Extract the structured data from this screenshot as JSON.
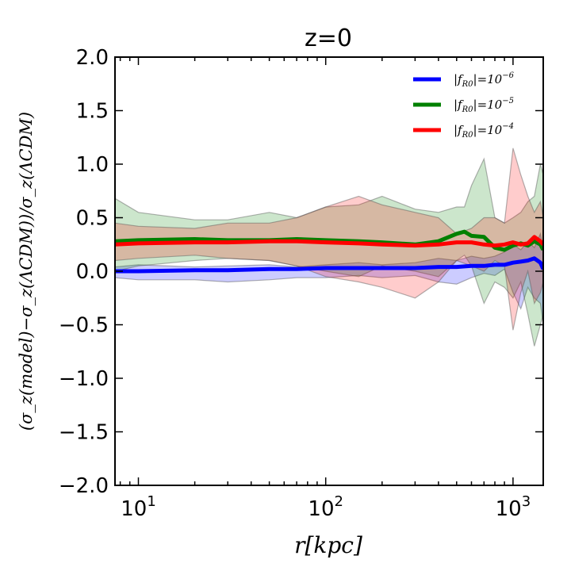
{
  "chart_data": {
    "type": "line",
    "title": "z=0",
    "xlabel": "r[kpc]",
    "ylabel": "(σ_z(model)−σ_z(ΛCDM))/σ_z(ΛCDM)",
    "xscale": "log",
    "xlim": [
      7.5,
      1450
    ],
    "ylim": [
      -2.0,
      2.0
    ],
    "yticks": [
      "2.0",
      "1.5",
      "1.0",
      "0.5",
      "0.0",
      "−0.5",
      "−1.0",
      "−1.5",
      "−2.0"
    ],
    "ytick_values": [
      2.0,
      1.5,
      1.0,
      0.5,
      0.0,
      -0.5,
      -1.0,
      -1.5,
      -2.0
    ],
    "xticks": [
      {
        "value": 10,
        "base": "10",
        "exp": "1"
      },
      {
        "value": 100,
        "base": "10",
        "exp": "2"
      },
      {
        "value": 1000,
        "base": "10",
        "exp": "3"
      }
    ],
    "legend_position": "top-right",
    "series": [
      {
        "name": "|f_R0|=10^-6",
        "legend_main": "|f",
        "legend_sub": "R0",
        "legend_rest": "|=10",
        "legend_exp": "−6",
        "color": "#0000ff",
        "x": [
          7.5,
          10,
          20,
          30,
          50,
          70,
          100,
          150,
          200,
          300,
          400,
          500,
          600,
          700,
          800,
          900,
          1000,
          1100,
          1200,
          1300,
          1400,
          1450
        ],
        "y": [
          0.0,
          0.0,
          0.01,
          0.01,
          0.02,
          0.02,
          0.03,
          0.03,
          0.03,
          0.03,
          0.04,
          0.04,
          0.05,
          0.05,
          0.06,
          0.06,
          0.08,
          0.09,
          0.1,
          0.12,
          0.08,
          0.02
        ],
        "lower": [
          -0.06,
          -0.08,
          -0.08,
          -0.1,
          -0.08,
          -0.06,
          -0.06,
          -0.04,
          -0.06,
          -0.04,
          -0.1,
          -0.12,
          -0.06,
          -0.02,
          -0.04,
          0.02,
          -0.2,
          -0.35,
          -0.15,
          -0.25,
          -0.3,
          -0.5
        ],
        "upper": [
          0.04,
          0.06,
          0.04,
          0.05,
          0.06,
          0.04,
          0.06,
          0.08,
          0.06,
          0.08,
          0.12,
          0.1,
          0.14,
          0.12,
          0.14,
          0.18,
          0.25,
          0.2,
          0.28,
          0.22,
          0.35,
          0.2
        ]
      },
      {
        "name": "|f_R0|=10^-5",
        "legend_main": "|f",
        "legend_sub": "R0",
        "legend_rest": "|=10",
        "legend_exp": "−5",
        "color": "#008000",
        "x": [
          7.5,
          10,
          20,
          30,
          50,
          70,
          100,
          150,
          200,
          300,
          400,
          500,
          550,
          600,
          700,
          800,
          900,
          1000,
          1100,
          1200,
          1300,
          1400,
          1450
        ],
        "y": [
          0.28,
          0.29,
          0.3,
          0.29,
          0.29,
          0.3,
          0.29,
          0.28,
          0.27,
          0.25,
          0.28,
          0.35,
          0.37,
          0.33,
          0.32,
          0.22,
          0.2,
          0.24,
          0.26,
          0.24,
          0.28,
          0.25,
          0.2
        ],
        "lower": [
          0.0,
          0.05,
          0.1,
          0.12,
          0.1,
          0.05,
          0.0,
          -0.05,
          0.05,
          0.0,
          -0.05,
          0.1,
          0.15,
          0.05,
          -0.3,
          -0.1,
          -0.15,
          -0.25,
          -0.1,
          -0.4,
          -0.7,
          -0.5,
          -0.4
        ],
        "upper": [
          0.68,
          0.55,
          0.48,
          0.48,
          0.55,
          0.5,
          0.6,
          0.62,
          0.7,
          0.58,
          0.55,
          0.6,
          0.6,
          0.8,
          1.05,
          0.5,
          0.45,
          0.5,
          0.55,
          0.65,
          0.7,
          1.0,
          0.9
        ]
      },
      {
        "name": "|f_R0|=10^-4",
        "legend_main": "|f",
        "legend_sub": "R0",
        "legend_rest": "|=10",
        "legend_exp": "−4",
        "color": "#ff0000",
        "x": [
          7.5,
          10,
          20,
          30,
          50,
          70,
          100,
          150,
          200,
          300,
          400,
          500,
          600,
          700,
          800,
          900,
          1000,
          1100,
          1200,
          1300,
          1400,
          1450
        ],
        "y": [
          0.25,
          0.26,
          0.27,
          0.27,
          0.28,
          0.28,
          0.27,
          0.26,
          0.25,
          0.24,
          0.25,
          0.27,
          0.27,
          0.25,
          0.24,
          0.25,
          0.27,
          0.25,
          0.26,
          0.32,
          0.28,
          0.25
        ],
        "lower": [
          0.1,
          0.12,
          0.15,
          0.12,
          0.1,
          0.05,
          -0.05,
          -0.1,
          -0.15,
          -0.25,
          -0.1,
          0.1,
          0.05,
          0.0,
          0.1,
          0.05,
          -0.55,
          -0.2,
          0.0,
          -0.3,
          -0.2,
          -0.1
        ],
        "upper": [
          0.45,
          0.42,
          0.4,
          0.45,
          0.45,
          0.5,
          0.6,
          0.7,
          0.62,
          0.55,
          0.5,
          0.35,
          0.4,
          0.5,
          0.5,
          0.45,
          1.15,
          0.9,
          0.7,
          0.55,
          0.65,
          0.5
        ]
      }
    ]
  }
}
